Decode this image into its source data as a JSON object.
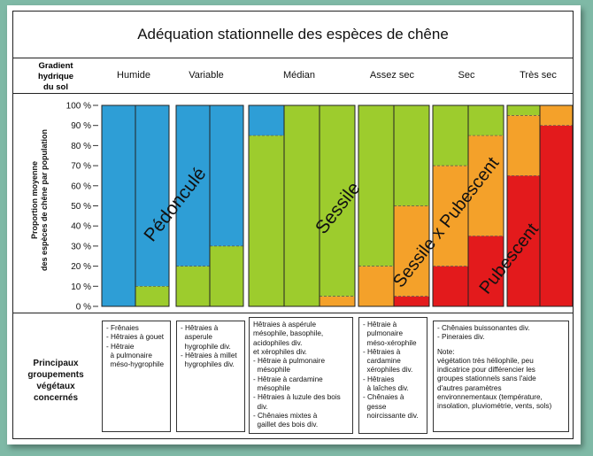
{
  "title": "Adéquation stationnelle des espèces de chêne",
  "gradient_label": [
    "Gradient",
    "hydrique",
    "du sol"
  ],
  "ylabel_lines": [
    "Proportion moyenne",
    "des espèces de chêne par population"
  ],
  "group_label": [
    "Principaux",
    "groupements",
    "végétaux",
    "concernés"
  ],
  "colors": {
    "blue": "#2e9ed6",
    "green": "#9dcc2d",
    "orange": "#f4a12a",
    "red": "#e31a1c"
  },
  "chart_data": {
    "type": "bar",
    "stacked": true,
    "categories": [
      "Humide",
      "Variable",
      "Médian",
      "Assez sec",
      "Sec",
      "Très sec"
    ],
    "ylim": [
      0,
      100
    ],
    "yticks": [
      "0 %",
      "10 %",
      "20 %",
      "30 %",
      "40 %",
      "50 %",
      "60 %",
      "70 %",
      "80 %",
      "90 %",
      "100 %"
    ],
    "columns": [
      {
        "category": "Humide",
        "bars": [
          {
            "Pédonculé": 100
          },
          {
            "Sessile": 10,
            "Pédonculé": 90
          }
        ]
      },
      {
        "category": "Variable",
        "bars": [
          {
            "Sessile": 20,
            "Pédonculé": 80
          },
          {
            "Sessile": 30,
            "Pédonculé": 70
          }
        ]
      },
      {
        "category": "Médian",
        "bars": [
          {
            "Sessile": 85,
            "Pédonculé": 15
          },
          {
            "Sessile": 100
          },
          {
            "Sessile x Pubescent": 5,
            "Sessile": 95
          }
        ]
      },
      {
        "category": "Assez sec",
        "bars": [
          {
            "Sessile x Pubescent": 20,
            "Sessile": 80
          },
          {
            "Pubescent": 5,
            "Sessile x Pubescent": 45,
            "Sessile": 50
          }
        ]
      },
      {
        "category": "Sec",
        "bars": [
          {
            "Pubescent": 20,
            "Sessile x Pubescent": 50,
            "Sessile": 30
          },
          {
            "Pubescent": 35,
            "Sessile x Pubescent": 50,
            "Sessile": 15
          }
        ]
      },
      {
        "category": "Très sec",
        "bars": [
          {
            "Pubescent": 65,
            "Sessile x Pubescent": 30,
            "Sessile": 5
          },
          {
            "Pubescent": 90,
            "Sessile x Pubescent": 10
          }
        ]
      }
    ],
    "series": [
      {
        "name": "Pédonculé",
        "color": "#2e9ed6"
      },
      {
        "name": "Sessile",
        "color": "#9dcc2d"
      },
      {
        "name": "Sessile x Pubescent",
        "color": "#f4a12a"
      },
      {
        "name": "Pubescent",
        "color": "#e31a1c"
      }
    ],
    "annotations": [
      "Pédonculé",
      "Sessile",
      "Sessile x Pubescent",
      "Pubescent"
    ]
  },
  "groups": [
    {
      "items": [
        "- Frênaies",
        "- Hêtraies à gouet",
        "- Hêtraie",
        "  à pulmonaire",
        "  méso-hygrophile"
      ]
    },
    {
      "items": [
        "- Hêtraies à",
        "  asperule",
        "  hygrophile div.",
        "- Hêtraies à millet",
        "  hygrophiles div."
      ]
    },
    {
      "items": [
        "Hêtraies à aspérule",
        "mésophile, basophile,",
        "acidophiles div.",
        "et xérophiles div.",
        "- Hêtraie à pulmonaire",
        "  mésophile",
        "- Hêtraie à cardamine",
        "  mésophile",
        "- Hêtraies à luzule des bois",
        "  div.",
        "- Chênaies mixtes à",
        "  gaillet des bois div."
      ]
    },
    {
      "items": [
        "- Hêtraie à",
        "  pulmonaire",
        "  méso-xérophile",
        "- Hêtraies à",
        "  cardamine",
        "  xérophiles div.",
        "- Hêtraies",
        "  à laîches div.",
        "- Chênaies à",
        "  gesse",
        "  noircissante div."
      ]
    },
    {
      "items": [
        "- Chênaies buissonantes div.",
        "- Pineraies div."
      ],
      "note": [
        "Note:",
        "végétation très héliophile, peu",
        "indicatrice pour différencier les",
        "groupes stationnels sans l'aide",
        "d'autres paramètres",
        "environnementaux (température,",
        "insolation, pluviométrie, vents, sols)"
      ]
    }
  ]
}
